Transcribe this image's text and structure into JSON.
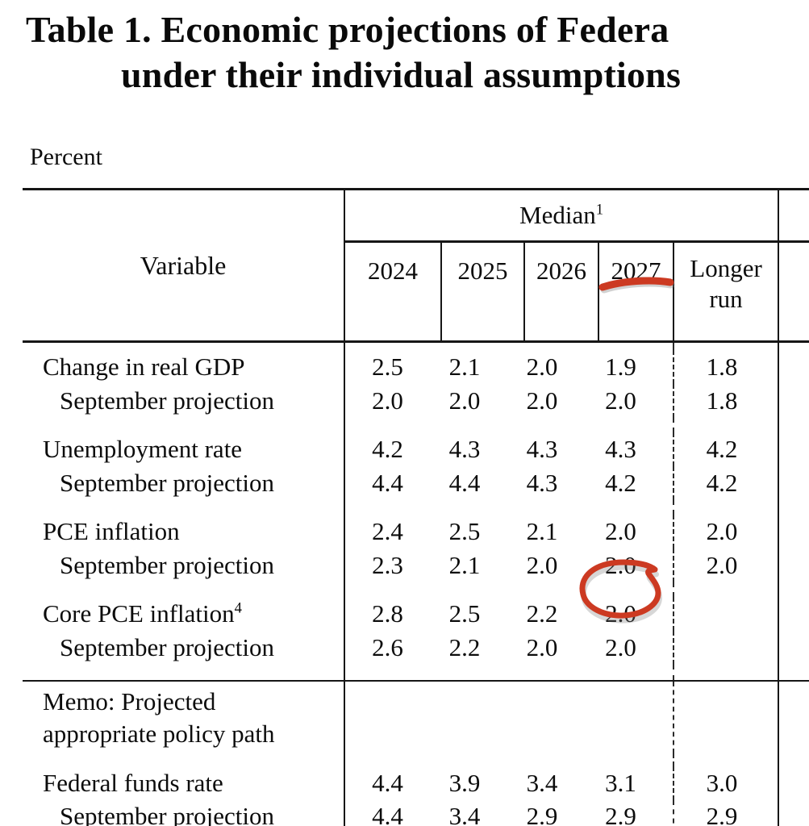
{
  "title": {
    "line1": "Table 1. Economic projections of Federa",
    "line2": "under their individual assumptions"
  },
  "unit_label": "Percent",
  "table": {
    "variable_header": "Variable",
    "group_header": {
      "label": "Median",
      "superscript": "1"
    },
    "year_columns": [
      "2024",
      "2025",
      "2026",
      "2027"
    ],
    "longer_run_label": "Longer run",
    "body_rows": [
      {
        "type": "spacer",
        "h": 10
      },
      {
        "type": "data",
        "label": "Change in real GDP",
        "values": [
          "2.5",
          "2.1",
          "2.0",
          "1.9",
          "1.8"
        ]
      },
      {
        "type": "data",
        "label": "September projection",
        "indent": true,
        "values": [
          "2.0",
          "2.0",
          "2.0",
          "2.0",
          "1.8"
        ]
      },
      {
        "type": "spacer",
        "h": 18
      },
      {
        "type": "data",
        "label": "Unemployment rate",
        "values": [
          "4.2",
          "4.3",
          "4.3",
          "4.3",
          "4.2"
        ]
      },
      {
        "type": "data",
        "label": "September projection",
        "indent": true,
        "values": [
          "4.4",
          "4.4",
          "4.3",
          "4.2",
          "4.2"
        ]
      },
      {
        "type": "spacer",
        "h": 18
      },
      {
        "type": "data",
        "label": "PCE inflation",
        "values": [
          "2.4",
          "2.5",
          "2.1",
          "2.0",
          "2.0"
        ]
      },
      {
        "type": "data",
        "label": "September projection",
        "indent": true,
        "values": [
          "2.3",
          "2.1",
          "2.0",
          "2.0",
          "2.0"
        ]
      },
      {
        "type": "spacer",
        "h": 18
      },
      {
        "type": "data",
        "label": "Core PCE inflation",
        "label_sup": "4",
        "values": [
          "2.8",
          "2.5",
          "2.2",
          "2.0",
          ""
        ]
      },
      {
        "type": "data",
        "label": "September projection",
        "indent": true,
        "values": [
          "2.6",
          "2.2",
          "2.0",
          "2.0",
          ""
        ]
      },
      {
        "type": "spacer",
        "h": 20
      },
      {
        "type": "memo",
        "line1": "Memo: Projected",
        "line2": "appropriate policy path",
        "rule_above": true
      },
      {
        "type": "spacer",
        "h": 16
      },
      {
        "type": "data",
        "label": "Federal funds rate",
        "values": [
          "4.4",
          "3.9",
          "3.4",
          "3.1",
          "3.0"
        ]
      },
      {
        "type": "data",
        "label": "September projection",
        "indent": true,
        "values": [
          "4.4",
          "3.4",
          "2.9",
          "2.9",
          "2.9"
        ]
      }
    ]
  },
  "annotations": {
    "color": "#cc3a22",
    "underline_target": "2027",
    "circle_target": "2.0"
  },
  "colors": {
    "text": "#0c0c0c",
    "rule": "#161616",
    "background": "#ffffff"
  }
}
